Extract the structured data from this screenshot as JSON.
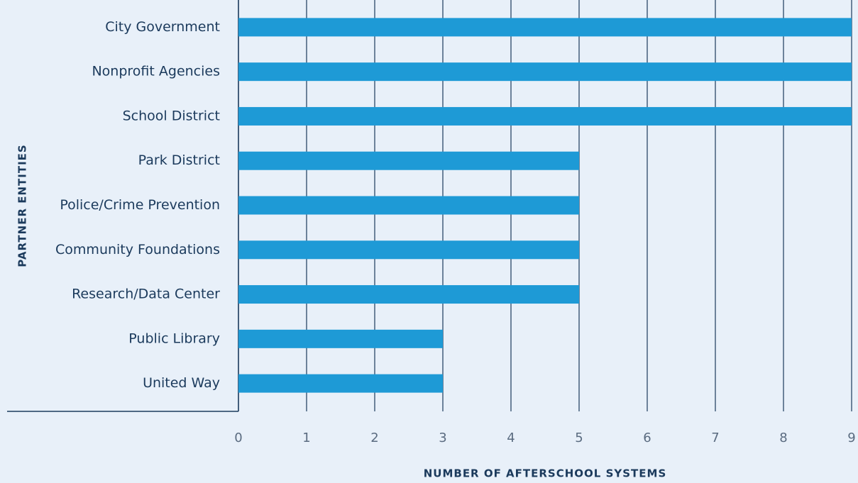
{
  "chart_data": {
    "type": "bar",
    "orientation": "horizontal",
    "categories": [
      "City Government",
      "Nonprofit Agencies",
      "School District",
      "Park District",
      "Police/Crime Prevention",
      "Community Foundations",
      "Research/Data Center",
      "Public Library",
      "United Way"
    ],
    "values": [
      9,
      9,
      9,
      5,
      5,
      5,
      5,
      3,
      3
    ],
    "color": "#1e9ad6",
    "xlim": [
      0,
      9
    ],
    "xticks": [
      0,
      1,
      2,
      3,
      4,
      5,
      6,
      7,
      8,
      9
    ],
    "grid": true,
    "xlabel": "NUMBER OF AFTERSCHOOL SYSTEMS",
    "ylabel": "PARTNER ENTITIES"
  }
}
